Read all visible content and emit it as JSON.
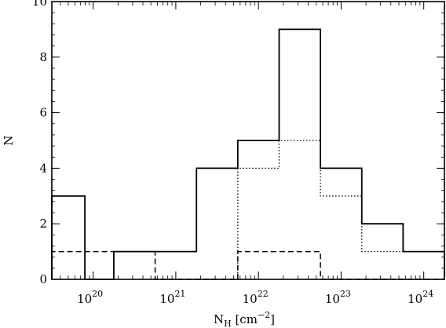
{
  "chart_data": {
    "type": "histogram",
    "xlabel": {
      "main": "N",
      "sub": "H",
      "bracket_open": "[cm",
      "sup": "−2",
      "bracket_close": "]"
    },
    "ylabel": "N",
    "xscale": "log",
    "xlim": [
      19.5,
      24.25
    ],
    "ylim": [
      0,
      10
    ],
    "x_ticks": [
      {
        "base": "10",
        "exp": "20",
        "value": 20
      },
      {
        "base": "10",
        "exp": "21",
        "value": 21
      },
      {
        "base": "10",
        "exp": "22",
        "value": 22
      },
      {
        "base": "10",
        "exp": "23",
        "value": 23
      },
      {
        "base": "10",
        "exp": "24",
        "value": 24
      }
    ],
    "y_ticks": [
      "0",
      "2",
      "4",
      "6",
      "8",
      "10"
    ],
    "series": [
      {
        "style": "solid",
        "edges": [
          19.5,
          19.9,
          20.25,
          21.25,
          21.75,
          22.25,
          22.75,
          23.25,
          23.75,
          24.25
        ],
        "counts": [
          3,
          0,
          1,
          4,
          5,
          9,
          4,
          2,
          1
        ]
      },
      {
        "style": "dotted",
        "edges": [
          21.75,
          22.25,
          22.75,
          23.25,
          24.25
        ],
        "counts": [
          4,
          5,
          3,
          1
        ]
      },
      {
        "style": "dashed",
        "edges": [
          19.5,
          20.75,
          21.75,
          22.75,
          24.25
        ],
        "counts": [
          1,
          0,
          1,
          0
        ]
      }
    ]
  }
}
